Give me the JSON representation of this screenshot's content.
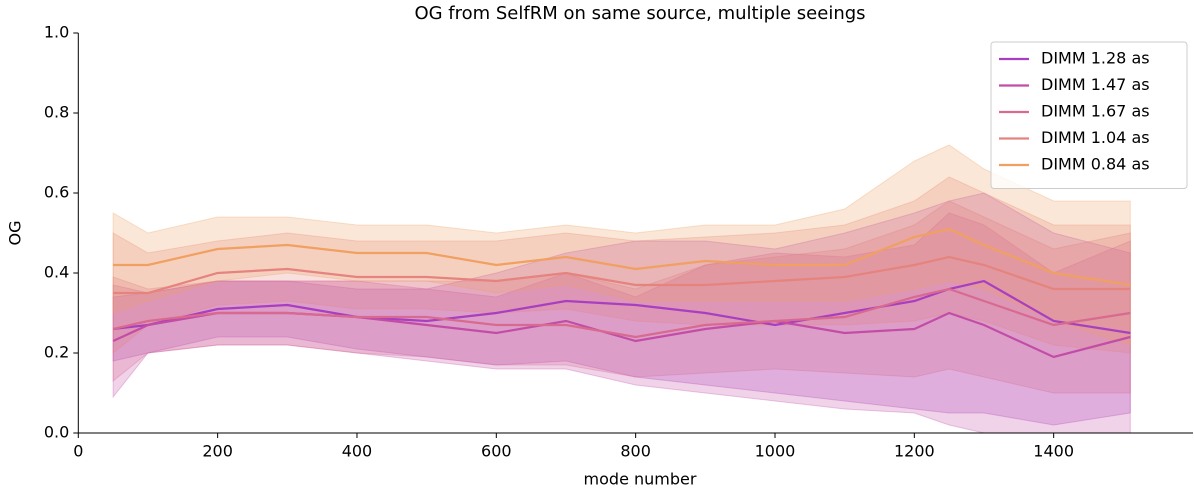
{
  "chart_data": {
    "type": "line",
    "title": "OG from SelfRM on same source, multiple seeings",
    "xlabel": "mode number",
    "ylabel": "OG",
    "x": [
      50,
      100,
      200,
      300,
      400,
      500,
      600,
      700,
      800,
      900,
      1000,
      1100,
      1200,
      1250,
      1300,
      1400,
      1510
    ],
    "xlim": [
      0,
      1600
    ],
    "xticks": [
      0,
      200,
      400,
      600,
      800,
      1000,
      1200,
      1400
    ],
    "ylim": [
      0,
      1
    ],
    "yticks": [
      {
        "value": 0,
        "label": "0.0"
      },
      {
        "value": 0.2,
        "label": "0.2"
      },
      {
        "value": 0.4,
        "label": "0.4"
      },
      {
        "value": 0.6,
        "label": "0.6"
      },
      {
        "value": 0.8,
        "label": "0.8"
      },
      {
        "value": 1,
        "label": "1.0"
      }
    ],
    "legend": "upper right",
    "series": [
      {
        "name": "DIMM 1.28 as",
        "color": "#a83ec0",
        "values": [
          0.26,
          0.27,
          0.31,
          0.32,
          0.29,
          0.28,
          0.3,
          0.33,
          0.32,
          0.3,
          0.27,
          0.3,
          0.33,
          0.36,
          0.38,
          0.28,
          0.25
        ],
        "lower": [
          0.18,
          0.2,
          0.24,
          0.24,
          0.21,
          0.19,
          0.17,
          0.18,
          0.14,
          0.12,
          0.1,
          0.08,
          0.06,
          0.05,
          0.05,
          0.02,
          0.05
        ],
        "upper": [
          0.34,
          0.35,
          0.38,
          0.38,
          0.36,
          0.36,
          0.4,
          0.45,
          0.48,
          0.48,
          0.46,
          0.5,
          0.55,
          0.58,
          0.6,
          0.5,
          0.45
        ]
      },
      {
        "name": "DIMM 1.47 as",
        "color": "#c24da6",
        "values": [
          0.23,
          0.27,
          0.3,
          0.3,
          0.29,
          0.27,
          0.25,
          0.28,
          0.23,
          0.26,
          0.28,
          0.25,
          0.26,
          0.3,
          0.27,
          0.19,
          0.24
        ],
        "lower": [
          0.09,
          0.2,
          0.22,
          0.22,
          0.2,
          0.18,
          0.16,
          0.16,
          0.12,
          0.1,
          0.08,
          0.06,
          0.05,
          0.02,
          0.0,
          0.0,
          0.0
        ],
        "upper": [
          0.37,
          0.35,
          0.38,
          0.38,
          0.38,
          0.36,
          0.34,
          0.4,
          0.34,
          0.42,
          0.45,
          0.44,
          0.47,
          0.55,
          0.52,
          0.4,
          0.48
        ]
      },
      {
        "name": "DIMM 1.67 as",
        "color": "#d86a8f",
        "values": [
          0.26,
          0.28,
          0.3,
          0.3,
          0.29,
          0.29,
          0.27,
          0.27,
          0.24,
          0.27,
          0.28,
          0.29,
          0.34,
          0.36,
          0.33,
          0.27,
          0.3
        ],
        "lower": [
          0.13,
          0.2,
          0.22,
          0.22,
          0.2,
          0.19,
          0.17,
          0.17,
          0.14,
          0.15,
          0.16,
          0.15,
          0.14,
          0.16,
          0.14,
          0.1,
          0.1
        ],
        "upper": [
          0.39,
          0.36,
          0.38,
          0.38,
          0.38,
          0.38,
          0.38,
          0.4,
          0.36,
          0.42,
          0.44,
          0.46,
          0.52,
          0.58,
          0.54,
          0.46,
          0.5
        ]
      },
      {
        "name": "DIMM 1.04 as",
        "color": "#e5837f",
        "values": [
          0.35,
          0.35,
          0.4,
          0.41,
          0.39,
          0.39,
          0.38,
          0.4,
          0.37,
          0.37,
          0.38,
          0.39,
          0.42,
          0.44,
          0.42,
          0.36,
          0.36
        ],
        "lower": [
          0.2,
          0.27,
          0.32,
          0.33,
          0.31,
          0.31,
          0.3,
          0.31,
          0.28,
          0.27,
          0.27,
          0.27,
          0.28,
          0.3,
          0.28,
          0.22,
          0.2
        ],
        "upper": [
          0.5,
          0.45,
          0.48,
          0.5,
          0.48,
          0.48,
          0.48,
          0.5,
          0.48,
          0.49,
          0.5,
          0.52,
          0.58,
          0.64,
          0.6,
          0.52,
          0.52
        ]
      },
      {
        "name": "DIMM 0.84 as",
        "color": "#f0a060",
        "values": [
          0.42,
          0.42,
          0.46,
          0.47,
          0.45,
          0.45,
          0.42,
          0.44,
          0.41,
          0.43,
          0.42,
          0.42,
          0.49,
          0.51,
          0.47,
          0.4,
          0.37
        ],
        "lower": [
          0.3,
          0.33,
          0.38,
          0.4,
          0.38,
          0.38,
          0.35,
          0.37,
          0.33,
          0.33,
          0.33,
          0.33,
          0.36,
          0.38,
          0.36,
          0.28,
          0.22
        ],
        "upper": [
          0.55,
          0.5,
          0.54,
          0.54,
          0.52,
          0.52,
          0.5,
          0.52,
          0.5,
          0.52,
          0.52,
          0.56,
          0.68,
          0.72,
          0.66,
          0.58,
          0.58
        ]
      }
    ]
  }
}
